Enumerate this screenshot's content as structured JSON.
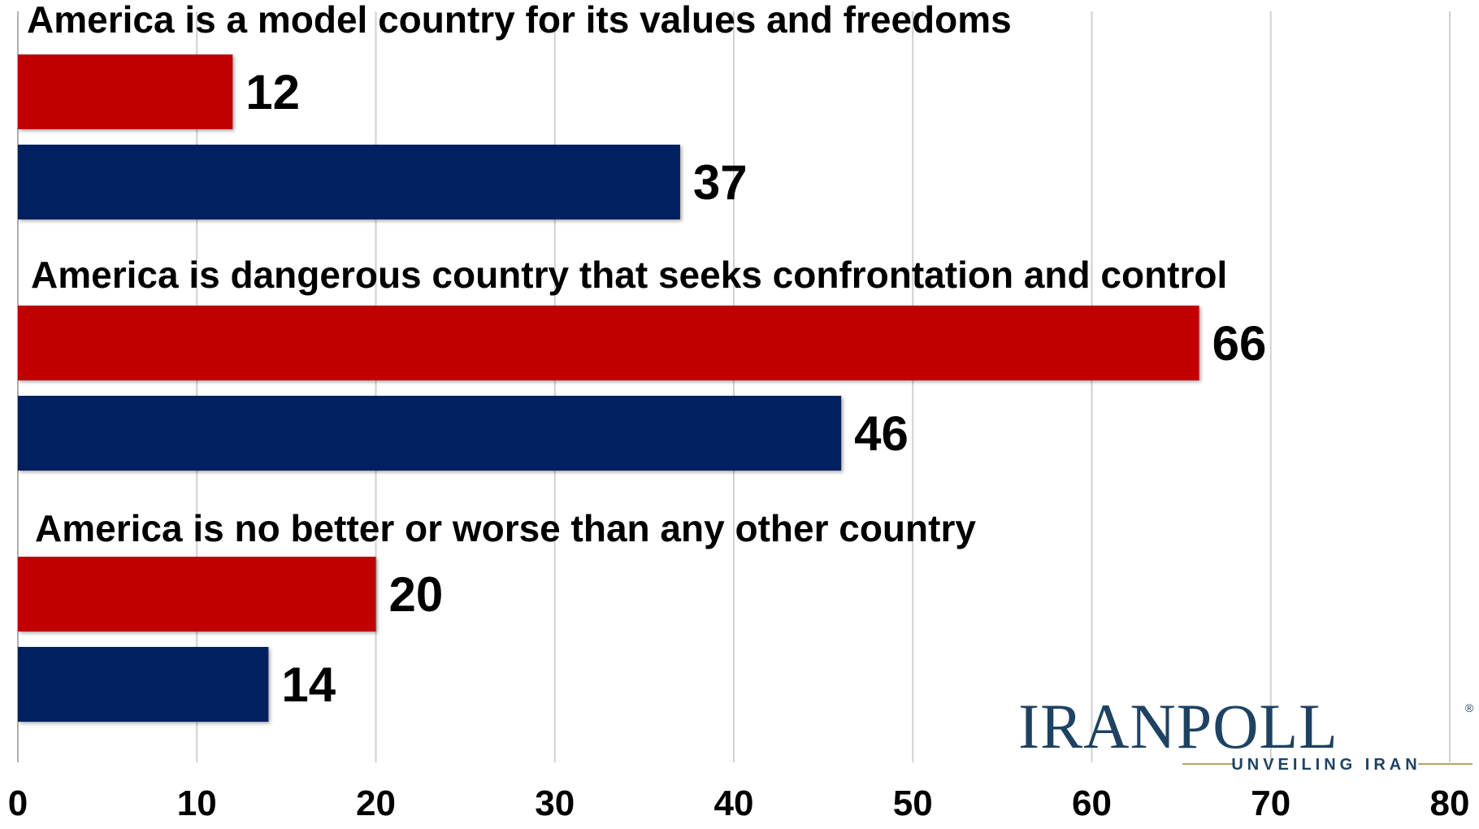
{
  "chart_data": {
    "type": "bar",
    "orientation": "horizontal",
    "categories": [
      "America is a model country for its values and freedoms",
      "America is dangerous country that seeks confrontation and control",
      "America is no better or worse than any other country"
    ],
    "series": [
      {
        "color": "#c00000",
        "values": [
          12,
          66,
          20
        ]
      },
      {
        "color": "#002060",
        "values": [
          37,
          46,
          14
        ]
      }
    ],
    "xlim": [
      0,
      80
    ],
    "xticks": [
      "0",
      "10",
      "20",
      "30",
      "40",
      "50",
      "60",
      "70",
      "80"
    ],
    "grid": true,
    "legend": "none"
  },
  "logo": {
    "name": "IRANPOLL",
    "registered": "®",
    "tagline": "UNVEILING IRAN"
  }
}
